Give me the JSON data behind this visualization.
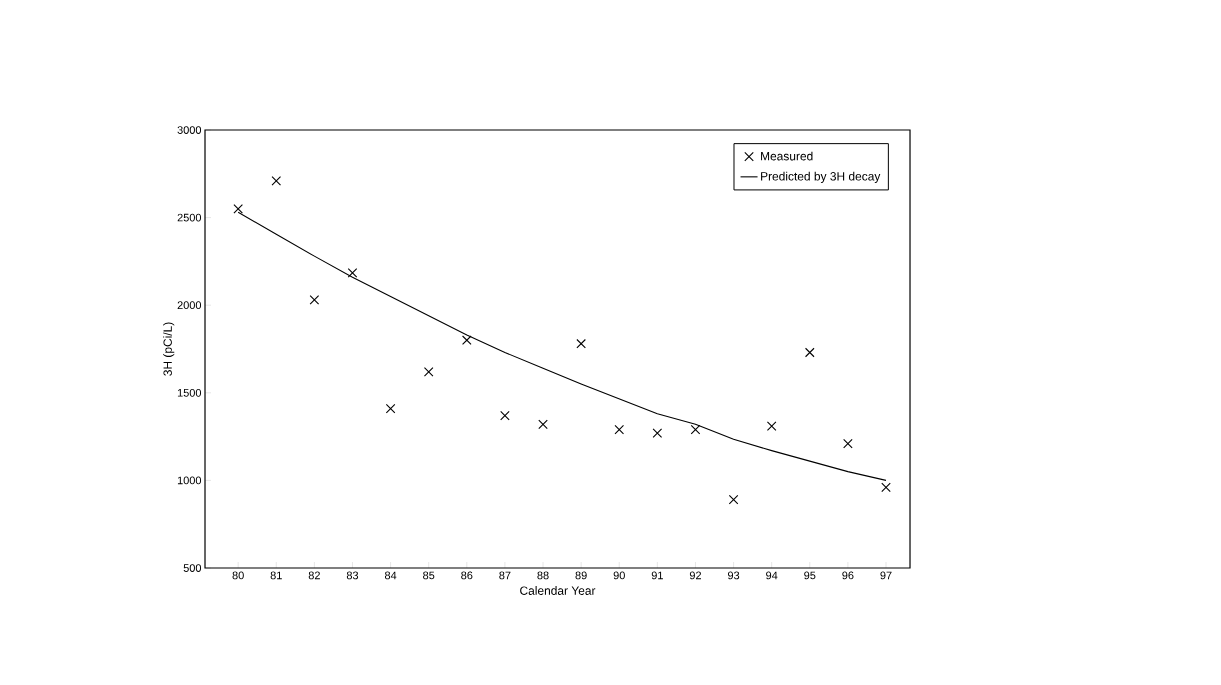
{
  "chart_data": {
    "type": "scatter",
    "xlabel": "Calendar Year",
    "ylabel": "3H (pCi/L)",
    "categories": [
      "80",
      "81",
      "82",
      "83",
      "84",
      "85",
      "86",
      "87",
      "88",
      "89",
      "90",
      "91",
      "92",
      "93",
      "94",
      "95",
      "96",
      "97"
    ],
    "ylim": [
      500,
      3000
    ],
    "yticks": [
      500,
      1000,
      1500,
      2000,
      2500,
      3000
    ],
    "legend": "top right",
    "series": [
      {
        "name": "Measured",
        "marker": "cross",
        "color": "#000000",
        "values": [
          2550,
          2710,
          2030,
          2185,
          1410,
          1620,
          1800,
          1370,
          1320,
          1780,
          1290,
          1270,
          1290,
          890,
          1310,
          1730,
          1210,
          960
        ]
      },
      {
        "name": "Predicted by 3H decay",
        "type": "line",
        "marker": "none",
        "color": "#000000",
        "values": [
          2530,
          2405,
          2280,
          2160,
          2050,
          1940,
          1830,
          1730,
          1640,
          1550,
          1465,
          1380,
          1320,
          1235,
          1170,
          1110,
          1050,
          1000
        ]
      }
    ]
  }
}
